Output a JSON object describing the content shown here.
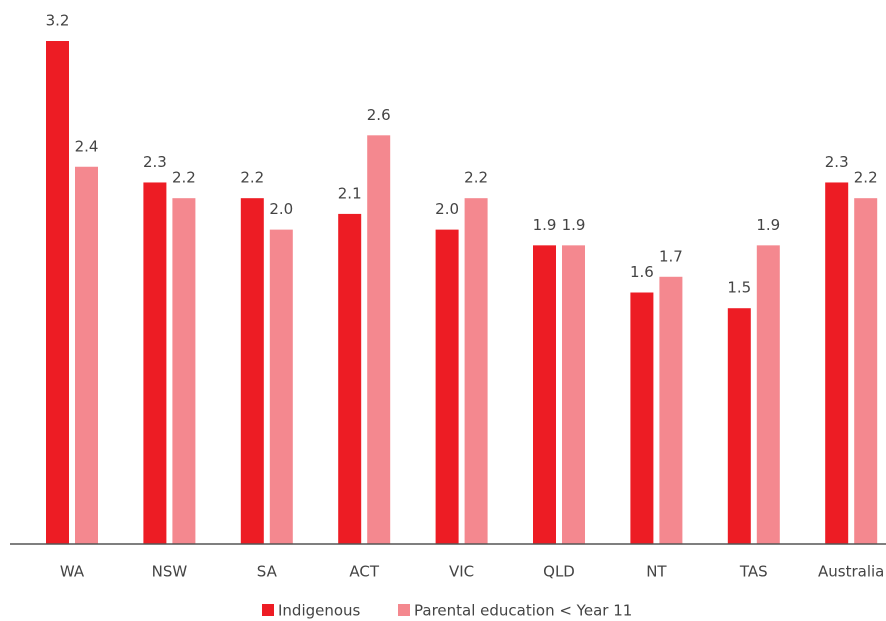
{
  "chart_data": {
    "type": "bar",
    "categories": [
      "WA",
      "NSW",
      "SA",
      "ACT",
      "VIC",
      "QLD",
      "NT",
      "TAS",
      "Australia"
    ],
    "series": [
      {
        "name": "Indigenous",
        "color": "#ed1c24",
        "values": [
          3.2,
          2.3,
          2.2,
          2.1,
          2.0,
          1.9,
          1.6,
          1.5,
          2.3
        ],
        "value_labels": [
          "3.2",
          "2.3",
          "2.2",
          "2.1",
          "2.0",
          "1.9",
          "1.6",
          "1.5",
          "2.3"
        ]
      },
      {
        "name": "Parental education < Year 11",
        "color": "#f4888f",
        "values": [
          2.4,
          2.2,
          2.0,
          2.6,
          2.2,
          1.9,
          1.7,
          1.9,
          2.2
        ],
        "value_labels": [
          "2.4",
          "2.2",
          "2.0",
          "2.6",
          "2.2",
          "1.9",
          "1.7",
          "1.9",
          "2.2"
        ]
      }
    ]
  }
}
